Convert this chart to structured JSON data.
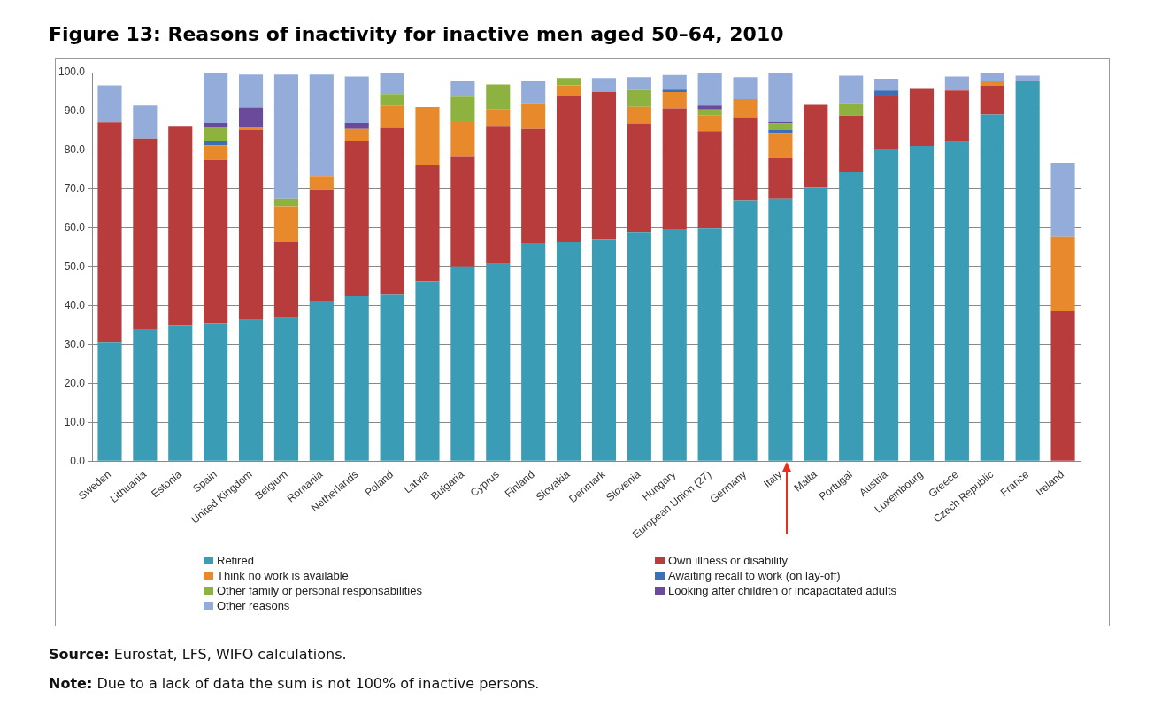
{
  "chart_data": {
    "type": "bar",
    "stacked": true,
    "title": "Figure 13: Reasons of inactivity for inactive men aged 50–64, 2010",
    "categories": [
      "Sweden",
      "Lithuania",
      "Estonia",
      "Spain",
      "United Kingdom",
      "Belgium",
      "Romania",
      "Netherlands",
      "Poland",
      "Latvia",
      "Bulgaria",
      "Cyprus",
      "Finland",
      "Slovakia",
      "Denmark",
      "Slovenia",
      "Hungary",
      "European Union (27)",
      "Germany",
      "Italy",
      "Malta",
      "Portugal",
      "Austria",
      "Luxembourg",
      "Greece",
      "Czech Republic",
      "France",
      "Ireland"
    ],
    "series": [
      {
        "name": "Retired",
        "color": "#3a9cb5",
        "values": [
          30.5,
          34,
          35,
          35.5,
          36.3,
          37,
          41.3,
          42.5,
          43,
          46.2,
          50,
          50.9,
          56.1,
          56.5,
          57.1,
          59,
          59.7,
          59.9,
          67.1,
          67.5,
          70.5,
          74.5,
          80.4,
          81.1,
          82.3,
          89.2,
          97.8,
          0
        ]
      },
      {
        "name": "Own illness or disability",
        "color": "#b83c3c",
        "values": [
          56.7,
          49,
          51.3,
          42,
          48.9,
          19.5,
          28.5,
          40,
          42.8,
          29.9,
          28.5,
          35.4,
          29.4,
          37.4,
          37.9,
          27.9,
          31.1,
          25,
          21.4,
          10.5,
          21.2,
          14.4,
          13.5,
          14.7,
          13.1,
          7.4,
          0,
          38.6
        ]
      },
      {
        "name": "Think no work is available",
        "color": "#e8892b",
        "values": [
          0,
          0,
          0,
          3.8,
          0.8,
          9,
          3.5,
          3,
          5.7,
          15,
          9,
          4.2,
          6.6,
          2.8,
          0,
          4.3,
          4.2,
          4,
          4.7,
          6.4,
          0,
          0,
          0,
          0,
          0,
          1.2,
          0,
          19.1
        ]
      },
      {
        "name": "Awaiting recall to work (on lay-off)",
        "color": "#3d6fb5",
        "values": [
          0,
          0,
          0,
          1.2,
          0,
          0,
          0,
          0,
          0,
          0,
          0,
          0,
          0,
          0,
          0,
          0,
          0.6,
          0,
          0,
          0.9,
          0,
          0,
          1.5,
          0,
          0,
          0,
          0,
          0
        ]
      },
      {
        "name": "Other family or personal responsabilities",
        "color": "#8db23f",
        "values": [
          0,
          0,
          0,
          3.5,
          0,
          2,
          0,
          0,
          3,
          0,
          6.3,
          6.4,
          0,
          1.9,
          0,
          4.3,
          0,
          1.6,
          0,
          1.6,
          0,
          3.2,
          0,
          0,
          0,
          0,
          0,
          0
        ]
      },
      {
        "name": "Looking after children or incapacitated adults",
        "color": "#6a4a9a",
        "values": [
          0,
          0,
          0,
          1,
          5,
          0,
          0,
          1.5,
          0,
          0,
          0,
          0,
          0,
          0,
          0,
          0,
          0,
          1,
          0,
          0.4,
          0,
          0,
          0,
          0,
          0,
          0,
          0,
          0
        ]
      },
      {
        "name": "Other reasons",
        "color": "#94acd9",
        "values": [
          9.5,
          8.5,
          0,
          13,
          8.5,
          32,
          26.2,
          12,
          5.5,
          0,
          4,
          0,
          5.7,
          0,
          3.6,
          3.3,
          3.8,
          8.4,
          5.6,
          12.7,
          0,
          7.1,
          3,
          0,
          3.6,
          2.2,
          1.4,
          19.1
        ]
      }
    ],
    "ylim": [
      0,
      100
    ],
    "yticks": [
      {
        "value": 0,
        "label": "0.0"
      },
      {
        "value": 10,
        "label": "10.0"
      },
      {
        "value": 20,
        "label": "20.0"
      },
      {
        "value": 30,
        "label": "30.0"
      },
      {
        "value": 40,
        "label": "40.0"
      },
      {
        "value": 50,
        "label": "50.0"
      },
      {
        "value": 60,
        "label": "60.0"
      },
      {
        "value": 70,
        "label": "70.0"
      },
      {
        "value": 80,
        "label": "80.0"
      },
      {
        "value": 90,
        "label": "90.0"
      },
      {
        "value": 100,
        "label": "100.0"
      }
    ],
    "grid": "y",
    "legend": "bottom",
    "annotations": [
      "Source: Eurostat, LFS, WIFO calculations.",
      "Note: Due to a lack of data the sum is not 100% of inactive persons."
    ]
  }
}
